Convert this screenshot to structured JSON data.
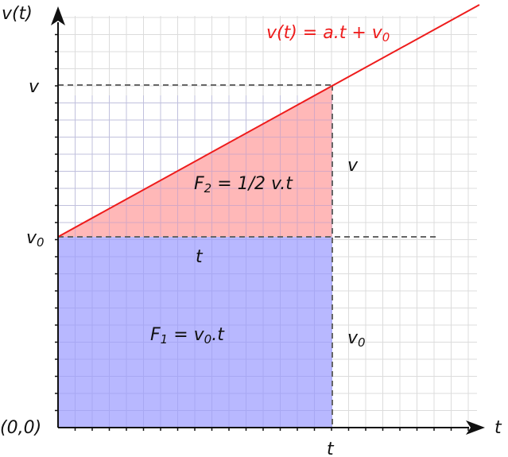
{
  "axes": {
    "y_label": "v(t)",
    "x_label": "t",
    "origin_label": "(0,0)",
    "y_tick_v": "v",
    "y_tick_v0_base": "v",
    "y_tick_v0_sub": "0",
    "x_tick_t": "t"
  },
  "line_label": {
    "lhs": "v(t) = a.t + v",
    "sub": "0"
  },
  "areas": {
    "f1": {
      "lhs": "F",
      "lhs_sub": "1",
      "rhs": " = v",
      "rhs_sub": "0",
      "tail": ".t",
      "color": "#b4b4ff"
    },
    "f2": {
      "lhs": "F",
      "lhs_sub": "2",
      "rhs": " = 1/2 v.t",
      "color": "#ffb4b4"
    }
  },
  "annotations": {
    "f2_width": "t",
    "f2_height": "v",
    "f1_height_base": "v",
    "f1_height_sub": "0"
  },
  "colors": {
    "line": "#ee1c1c",
    "grid": "#dcdcdc",
    "dash": "#666666",
    "axis": "#111111"
  }
}
